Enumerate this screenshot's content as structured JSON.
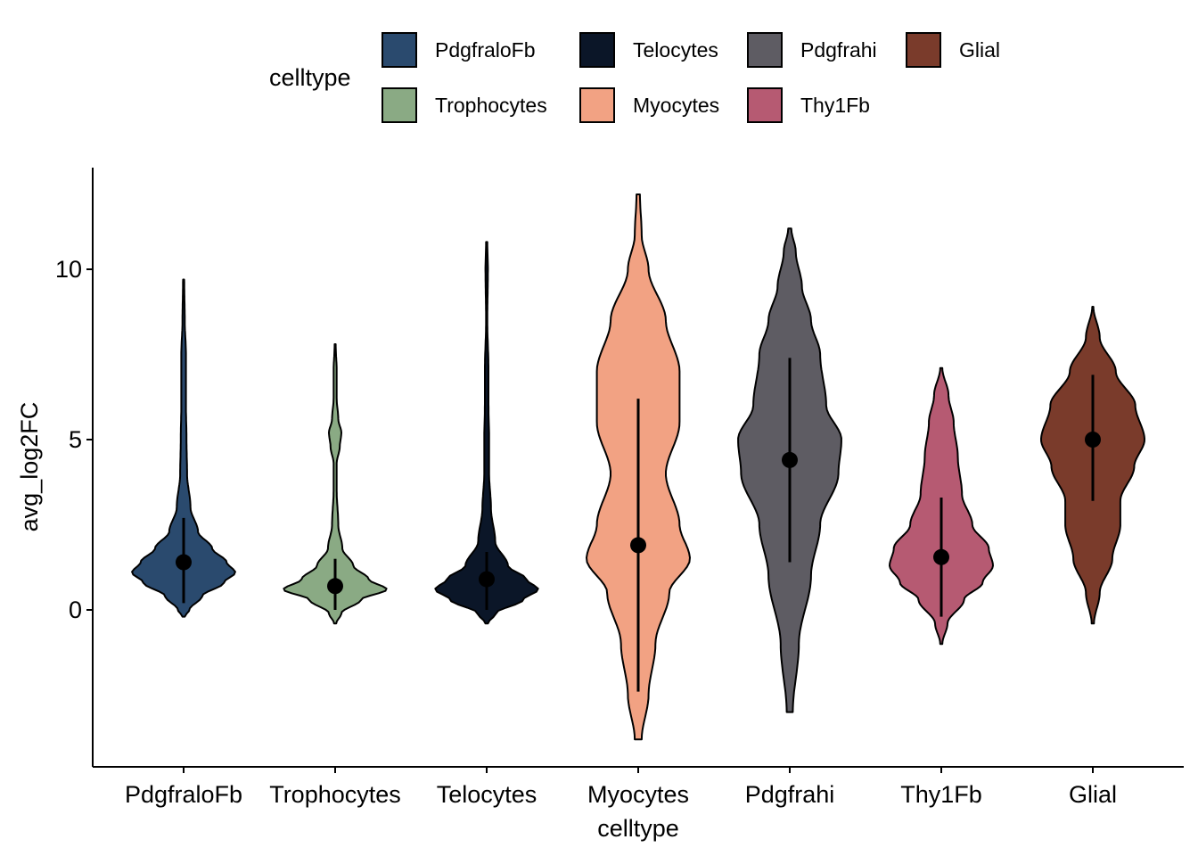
{
  "legend": {
    "title": "celltype",
    "items": [
      {
        "label": "PdgfraloFb",
        "color": "#2a4a6e"
      },
      {
        "label": "Telocytes",
        "color": "#0b1628"
      },
      {
        "label": "Pdgfrahi",
        "color": "#5e5c63"
      },
      {
        "label": "Glial",
        "color": "#7a3b2b"
      },
      {
        "label": "Trophocytes",
        "color": "#8aaa84"
      },
      {
        "label": "Myocytes",
        "color": "#f2a283"
      },
      {
        "label": "Thy1Fb",
        "color": "#b65a72"
      }
    ]
  },
  "chart_data": {
    "type": "violin",
    "xlabel": "celltype",
    "ylabel": "avg_log2FC",
    "ylim": [
      -4.6,
      13.0
    ],
    "yticks": [
      0,
      5,
      10
    ],
    "categories": [
      "PdgfraloFb",
      "Trophocytes",
      "Telocytes",
      "Myocytes",
      "Pdgfrahi",
      "Thy1Fb",
      "Glial"
    ],
    "series": [
      {
        "category": "PdgfraloFb",
        "color": "#2a4a6e",
        "mean": 1.4,
        "sd_low": 0.2,
        "sd_high": 2.7,
        "min": -0.2,
        "max": 9.7,
        "density": [
          [
            -0.2,
            0.02
          ],
          [
            0.0,
            0.1
          ],
          [
            0.4,
            0.32
          ],
          [
            0.8,
            0.7
          ],
          [
            1.1,
            0.9
          ],
          [
            1.4,
            0.75
          ],
          [
            1.8,
            0.5
          ],
          [
            2.3,
            0.25
          ],
          [
            3.0,
            0.12
          ],
          [
            4.0,
            0.06
          ],
          [
            5.0,
            0.05
          ],
          [
            6.0,
            0.04
          ],
          [
            7.5,
            0.04
          ],
          [
            8.5,
            0.02
          ],
          [
            9.7,
            0.01
          ]
        ]
      },
      {
        "category": "Trophocytes",
        "color": "#8aaa84",
        "mean": 0.7,
        "sd_low": 0.0,
        "sd_high": 1.5,
        "min": -0.4,
        "max": 7.8,
        "density": [
          [
            -0.4,
            0.02
          ],
          [
            -0.1,
            0.12
          ],
          [
            0.3,
            0.5
          ],
          [
            0.6,
            1.0
          ],
          [
            0.9,
            0.65
          ],
          [
            1.3,
            0.35
          ],
          [
            1.8,
            0.14
          ],
          [
            2.5,
            0.06
          ],
          [
            3.5,
            0.03
          ],
          [
            4.3,
            0.03
          ],
          [
            4.8,
            0.09
          ],
          [
            5.2,
            0.12
          ],
          [
            5.6,
            0.06
          ],
          [
            6.2,
            0.03
          ],
          [
            7.0,
            0.03
          ],
          [
            7.8,
            0.01
          ]
        ]
      },
      {
        "category": "Telocytes",
        "color": "#0b1628",
        "mean": 0.9,
        "sd_low": 0.0,
        "sd_high": 1.7,
        "min": -0.4,
        "max": 10.8,
        "density": [
          [
            -0.4,
            0.02
          ],
          [
            -0.1,
            0.15
          ],
          [
            0.3,
            0.6
          ],
          [
            0.6,
            0.85
          ],
          [
            0.9,
            0.65
          ],
          [
            1.3,
            0.35
          ],
          [
            2.0,
            0.14
          ],
          [
            3.0,
            0.07
          ],
          [
            4.0,
            0.04
          ],
          [
            5.0,
            0.04
          ],
          [
            6.0,
            0.03
          ],
          [
            7.0,
            0.03
          ],
          [
            8.5,
            0.01
          ],
          [
            10.0,
            0.02
          ],
          [
            10.8,
            0.01
          ]
        ]
      },
      {
        "category": "Myocytes",
        "color": "#f2a283",
        "mean": 1.9,
        "sd_low": -2.4,
        "sd_high": 6.2,
        "min": -3.8,
        "max": 12.2,
        "density": [
          [
            -3.8,
            0.01
          ],
          [
            -2.5,
            0.03
          ],
          [
            -1.0,
            0.05
          ],
          [
            0.5,
            0.09
          ],
          [
            1.5,
            0.15
          ],
          [
            2.5,
            0.12
          ],
          [
            4.0,
            0.08
          ],
          [
            5.5,
            0.12
          ],
          [
            7.0,
            0.12
          ],
          [
            8.5,
            0.08
          ],
          [
            10.0,
            0.03
          ],
          [
            11.0,
            0.01
          ],
          [
            12.2,
            0.005
          ]
        ]
      },
      {
        "category": "Pdgfrahi",
        "color": "#5e5c63",
        "mean": 4.4,
        "sd_low": 1.4,
        "sd_high": 7.4,
        "min": -3.0,
        "max": 11.2,
        "density": [
          [
            -3.0,
            0.01
          ],
          [
            -1.0,
            0.03
          ],
          [
            1.0,
            0.07
          ],
          [
            2.5,
            0.1
          ],
          [
            4.0,
            0.16
          ],
          [
            5.0,
            0.17
          ],
          [
            6.0,
            0.12
          ],
          [
            7.5,
            0.1
          ],
          [
            8.5,
            0.07
          ],
          [
            9.5,
            0.04
          ],
          [
            10.5,
            0.02
          ],
          [
            11.2,
            0.005
          ]
        ]
      },
      {
        "category": "Thy1Fb",
        "color": "#b65a72",
        "mean": 1.55,
        "sd_low": -0.2,
        "sd_high": 3.3,
        "min": -1.0,
        "max": 7.1,
        "density": [
          [
            -1.0,
            0.01
          ],
          [
            -0.4,
            0.06
          ],
          [
            0.3,
            0.22
          ],
          [
            0.8,
            0.4
          ],
          [
            1.3,
            0.5
          ],
          [
            1.8,
            0.46
          ],
          [
            2.5,
            0.3
          ],
          [
            3.4,
            0.2
          ],
          [
            4.5,
            0.16
          ],
          [
            5.5,
            0.12
          ],
          [
            6.3,
            0.07
          ],
          [
            7.1,
            0.01
          ]
        ]
      },
      {
        "category": "Glial",
        "color": "#7a3b2b",
        "mean": 5.0,
        "sd_low": 3.2,
        "sd_high": 6.9,
        "min": -0.4,
        "max": 8.9,
        "density": [
          [
            -0.4,
            0.01
          ],
          [
            0.5,
            0.06
          ],
          [
            1.5,
            0.17
          ],
          [
            2.5,
            0.24
          ],
          [
            3.2,
            0.24
          ],
          [
            4.2,
            0.36
          ],
          [
            5.0,
            0.45
          ],
          [
            6.0,
            0.37
          ],
          [
            7.0,
            0.2
          ],
          [
            8.0,
            0.06
          ],
          [
            8.9,
            0.005
          ]
        ]
      }
    ]
  }
}
